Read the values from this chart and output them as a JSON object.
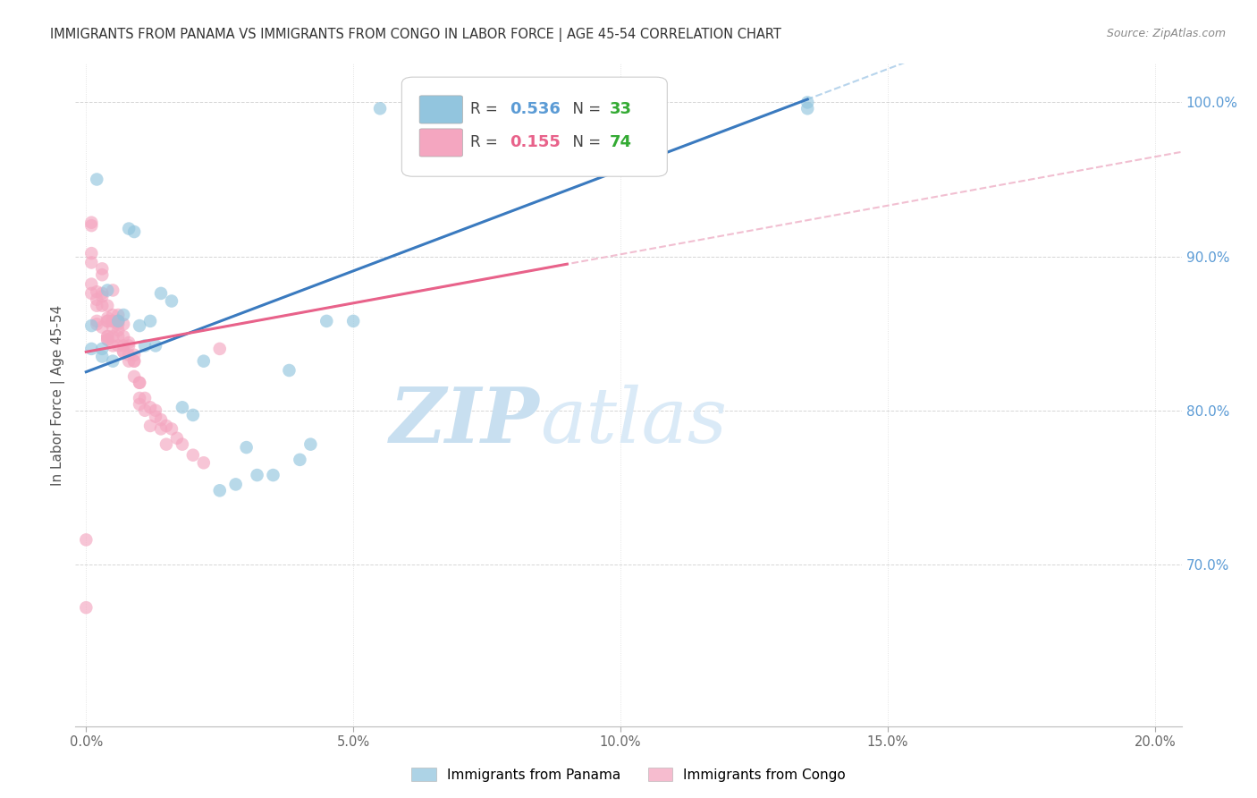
{
  "title": "IMMIGRANTS FROM PANAMA VS IMMIGRANTS FROM CONGO IN LABOR FORCE | AGE 45-54 CORRELATION CHART",
  "source": "Source: ZipAtlas.com",
  "ylabel": "In Labor Force | Age 45-54",
  "right_yticks": [
    0.7,
    0.8,
    0.9,
    1.0
  ],
  "right_yticklabels": [
    "70.0%",
    "80.0%",
    "90.0%",
    "100.0%"
  ],
  "xticks": [
    0.0,
    0.05,
    0.1,
    0.15,
    0.2
  ],
  "xticklabels": [
    "0.0%",
    "5.0%",
    "10.0%",
    "15.0%",
    "20.0%"
  ],
  "xlim": [
    -0.002,
    0.205
  ],
  "ylim": [
    0.595,
    1.025
  ],
  "panama_color": "#92c5de",
  "congo_color": "#f4a6c0",
  "panama_line_color": "#3a7abf",
  "congo_line_color": "#e8628a",
  "dashed_color_panama": "#b0d0ea",
  "dashed_color_congo": "#f0b8cc",
  "title_color": "#333333",
  "source_color": "#888888",
  "axis_label_color": "#555555",
  "right_tick_color": "#5b9bd5",
  "bottom_tick_color": "#666666",
  "watermark_text": "ZIPatlas",
  "watermark_color": "#daeaf7",
  "legend_R_panama": "0.536",
  "legend_N_panama": "33",
  "legend_R_congo": "0.155",
  "legend_N_congo": "74",
  "legend_R_color": "#5b9bd5",
  "legend_N_color": "#33aa33",
  "bottom_legend_panama": "Immigrants from Panama",
  "bottom_legend_congo": "Immigrants from Congo",
  "panama_line_x0": 0.0,
  "panama_line_y0": 0.825,
  "panama_line_x1": 0.135,
  "panama_line_y1": 1.002,
  "congo_line_x0": 0.0,
  "congo_line_y0": 0.838,
  "congo_line_x1": 0.09,
  "congo_line_y1": 0.895,
  "panama_points_x": [
    0.001,
    0.001,
    0.002,
    0.003,
    0.003,
    0.004,
    0.005,
    0.006,
    0.007,
    0.008,
    0.009,
    0.01,
    0.011,
    0.012,
    0.013,
    0.014,
    0.016,
    0.018,
    0.02,
    0.022,
    0.025,
    0.028,
    0.03,
    0.032,
    0.035,
    0.038,
    0.04,
    0.042,
    0.045,
    0.05,
    0.055,
    0.135,
    0.135
  ],
  "panama_points_y": [
    0.855,
    0.84,
    0.95,
    0.84,
    0.835,
    0.878,
    0.832,
    0.858,
    0.862,
    0.918,
    0.916,
    0.855,
    0.842,
    0.858,
    0.842,
    0.876,
    0.871,
    0.802,
    0.797,
    0.832,
    0.748,
    0.752,
    0.776,
    0.758,
    0.758,
    0.826,
    0.768,
    0.778,
    0.858,
    0.858,
    0.996,
    1.0,
    0.996
  ],
  "congo_points_x": [
    0.0,
    0.0,
    0.001,
    0.001,
    0.001,
    0.001,
    0.001,
    0.001,
    0.002,
    0.002,
    0.002,
    0.002,
    0.002,
    0.003,
    0.003,
    0.003,
    0.003,
    0.003,
    0.003,
    0.004,
    0.004,
    0.004,
    0.004,
    0.004,
    0.004,
    0.004,
    0.004,
    0.005,
    0.005,
    0.005,
    0.005,
    0.005,
    0.005,
    0.005,
    0.006,
    0.006,
    0.006,
    0.006,
    0.006,
    0.006,
    0.006,
    0.007,
    0.007,
    0.007,
    0.007,
    0.007,
    0.008,
    0.008,
    0.008,
    0.008,
    0.009,
    0.009,
    0.009,
    0.009,
    0.01,
    0.01,
    0.01,
    0.01,
    0.011,
    0.011,
    0.012,
    0.012,
    0.013,
    0.013,
    0.014,
    0.014,
    0.015,
    0.015,
    0.016,
    0.017,
    0.018,
    0.02,
    0.022,
    0.025
  ],
  "congo_points_y": [
    0.716,
    0.672,
    0.922,
    0.92,
    0.902,
    0.896,
    0.882,
    0.876,
    0.877,
    0.872,
    0.868,
    0.856,
    0.858,
    0.892,
    0.888,
    0.876,
    0.854,
    0.874,
    0.868,
    0.868,
    0.858,
    0.846,
    0.848,
    0.86,
    0.858,
    0.848,
    0.846,
    0.878,
    0.862,
    0.858,
    0.854,
    0.842,
    0.848,
    0.858,
    0.858,
    0.852,
    0.842,
    0.856,
    0.862,
    0.858,
    0.848,
    0.848,
    0.838,
    0.842,
    0.856,
    0.838,
    0.842,
    0.836,
    0.844,
    0.832,
    0.832,
    0.832,
    0.822,
    0.836,
    0.818,
    0.804,
    0.818,
    0.808,
    0.808,
    0.8,
    0.802,
    0.79,
    0.8,
    0.796,
    0.794,
    0.788,
    0.79,
    0.778,
    0.788,
    0.782,
    0.778,
    0.771,
    0.766,
    0.84
  ],
  "figsize": [
    14.06,
    8.92
  ],
  "dpi": 100
}
